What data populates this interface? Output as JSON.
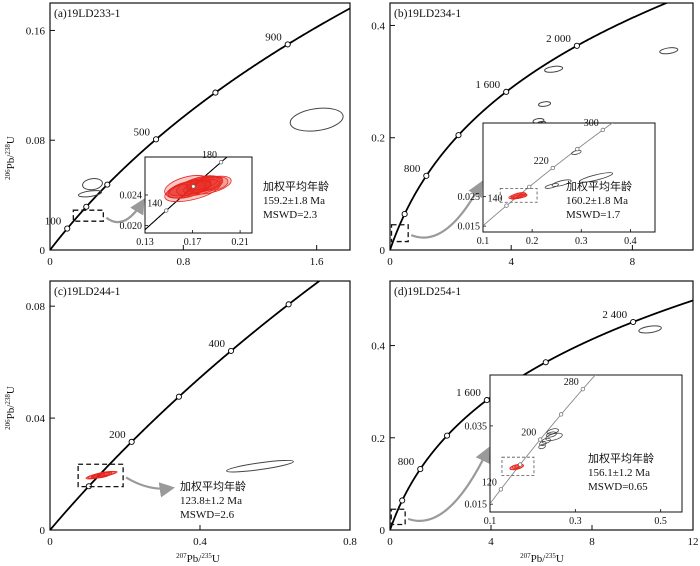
{
  "axes": {
    "ylabel_prefix": "206",
    "ylabel_suffix": "Pb/",
    "ylabel_denom": "238",
    "ylabel_unit": "U",
    "xlabel_prefix": "207",
    "xlabel_suffix": "Pb/",
    "xlabel_denom": "235",
    "xlabel_unit": "U"
  },
  "colors": {
    "frame": "#111111",
    "concordia": "#000000",
    "ellipse_data": "#e8261e",
    "ellipse_other": "#444444",
    "arrow": "#9a9a9a",
    "node_fill": "#ffffff"
  },
  "chart_data": [
    {
      "type": "scatter",
      "title": "(a)19LD233-1",
      "xlim": [
        0,
        1.8
      ],
      "ylim": [
        0,
        0.18
      ],
      "xticks": [
        0,
        0.8,
        1.6
      ],
      "xtick_labels": [
        "0",
        "0.8",
        "1.6"
      ],
      "yticks": [
        0,
        0.08,
        0.16
      ],
      "ytick_labels": [
        "0",
        "0.08",
        "0.16"
      ],
      "concordia_labels": [
        {
          "age": 100,
          "label": "100"
        },
        {
          "age": 500,
          "label": "500"
        },
        {
          "age": 900,
          "label": "900"
        }
      ],
      "concordia_nodes": [
        100,
        200,
        300,
        500,
        700,
        900
      ],
      "other_ellipses": [
        {
          "x": 0.255,
          "y": 0.048,
          "rx": 0.06,
          "ry": 0.004
        },
        {
          "x": 0.24,
          "y": 0.041,
          "rx": 0.07,
          "ry": 0.002
        },
        {
          "x": 1.6,
          "y": 0.095,
          "rx": 0.16,
          "ry": 0.008
        }
      ],
      "box": {
        "x0": 0.14,
        "x1": 0.32,
        "y0": 0.021,
        "y1": 0.029
      },
      "inset": {
        "xlim": [
          0.13,
          0.22
        ],
        "ylim": [
          0.019,
          0.029
        ],
        "xticks": [
          0.13,
          0.17,
          0.21
        ],
        "xtick_labels": [
          "0.13",
          "0.17",
          "0.21"
        ],
        "yticks": [
          0.02,
          0.024
        ],
        "ytick_labels": [
          "0.020",
          "0.024"
        ],
        "concordia_labels": [
          {
            "age": 140,
            "label": "140"
          },
          {
            "age": 180,
            "label": "180"
          }
        ],
        "concordia_nodes": [
          140,
          160,
          180
        ],
        "ellipses": [
          {
            "x": 0.172,
            "y": 0.0251,
            "rx": 0.022,
            "ry": 0.0009
          },
          {
            "x": 0.168,
            "y": 0.0249,
            "rx": 0.018,
            "ry": 0.0008
          },
          {
            "x": 0.176,
            "y": 0.0252,
            "rx": 0.02,
            "ry": 0.0011
          },
          {
            "x": 0.165,
            "y": 0.0247,
            "rx": 0.016,
            "ry": 0.001
          },
          {
            "x": 0.18,
            "y": 0.0254,
            "rx": 0.015,
            "ry": 0.0009
          },
          {
            "x": 0.17,
            "y": 0.0246,
            "rx": 0.024,
            "ry": 0.0012
          },
          {
            "x": 0.174,
            "y": 0.025,
            "rx": 0.012,
            "ry": 0.0007
          },
          {
            "x": 0.185,
            "y": 0.0253,
            "rx": 0.018,
            "ry": 0.001
          },
          {
            "x": 0.16,
            "y": 0.0245,
            "rx": 0.012,
            "ry": 0.0008
          },
          {
            "x": 0.178,
            "y": 0.0256,
            "rx": 0.014,
            "ry": 0.0008
          },
          {
            "x": 0.166,
            "y": 0.0251,
            "rx": 0.02,
            "ry": 0.0013
          },
          {
            "x": 0.19,
            "y": 0.0255,
            "rx": 0.01,
            "ry": 0.0008
          }
        ]
      },
      "result": {
        "label": "加权平均年龄",
        "age": "159.2±1.8 Ma",
        "mswd": "MSWD=2.3"
      }
    },
    {
      "type": "scatter",
      "title": "(b)19LD234-1",
      "xlim": [
        0,
        10
      ],
      "ylim": [
        0,
        0.44
      ],
      "xticks": [
        0,
        4,
        8
      ],
      "xtick_labels": [
        "0",
        "4",
        "8"
      ],
      "yticks": [
        0,
        0.2,
        0.4
      ],
      "ytick_labels": [
        "0",
        "0.2",
        "0.4"
      ],
      "concordia_labels": [
        {
          "age": 800,
          "label": "800"
        },
        {
          "age": 1600,
          "label": "1 600"
        },
        {
          "age": 2000,
          "label": "2 000"
        }
      ],
      "concordia_nodes": [
        400,
        800,
        1200,
        1600,
        2000
      ],
      "other_ellipses": [
        {
          "x": 9.2,
          "y": 0.355,
          "rx": 0.3,
          "ry": 0.005
        },
        {
          "x": 5.4,
          "y": 0.322,
          "rx": 0.3,
          "ry": 0.005
        },
        {
          "x": 5.1,
          "y": 0.26,
          "rx": 0.2,
          "ry": 0.004
        },
        {
          "x": 4.9,
          "y": 0.23,
          "rx": 0.18,
          "ry": 0.004
        },
        {
          "x": 5.0,
          "y": 0.226,
          "rx": 0.14,
          "ry": 0.003
        },
        {
          "x": 5.7,
          "y": 0.215,
          "rx": 0.2,
          "ry": 0.004
        }
      ],
      "box": {
        "x0": 0.05,
        "x1": 0.6,
        "y0": 0.015,
        "y1": 0.045
      },
      "inset": {
        "xlim": [
          0.1,
          0.45
        ],
        "ylim": [
          0.013,
          0.05
        ],
        "xticks": [
          0.1,
          0.2,
          0.3,
          0.4
        ],
        "xtick_labels": [
          "0.1",
          "0.2",
          "0.3",
          "0.4"
        ],
        "yticks": [
          0.015,
          0.025
        ],
        "ytick_labels": [
          "0.015",
          "0.025"
        ],
        "concordia_labels": [
          {
            "age": 140,
            "label": "140"
          },
          {
            "age": 220,
            "label": "220"
          },
          {
            "age": 300,
            "label": "300"
          }
        ],
        "concordia_nodes": [
          140,
          180,
          220,
          260,
          300
        ],
        "ellipses": [
          {
            "x": 0.17,
            "y": 0.0253,
            "rx": 0.018,
            "ry": 0.0007
          },
          {
            "x": 0.175,
            "y": 0.0251,
            "rx": 0.014,
            "ry": 0.0006
          },
          {
            "x": 0.168,
            "y": 0.0249,
            "rx": 0.012,
            "ry": 0.0006
          },
          {
            "x": 0.18,
            "y": 0.0252,
            "rx": 0.01,
            "ry": 0.0005
          },
          {
            "x": 0.172,
            "y": 0.0255,
            "rx": 0.015,
            "ry": 0.0007
          }
        ],
        "inset_others": [
          {
            "x": 0.33,
            "y": 0.0315,
            "rx": 0.035,
            "ry": 0.0009
          },
          {
            "x": 0.26,
            "y": 0.0296,
            "rx": 0.02,
            "ry": 0.0008
          },
          {
            "x": 0.24,
            "y": 0.0286,
            "rx": 0.014,
            "ry": 0.0006
          },
          {
            "x": 0.29,
            "y": 0.04,
            "rx": 0.01,
            "ry": 0.0006
          }
        ]
      },
      "result": {
        "label": "加权平均年龄",
        "age": "160.2±1.8 Ma",
        "mswd": "MSWD=1.7"
      }
    },
    {
      "type": "scatter",
      "title": "(c)19LD244-1",
      "xlim": [
        0,
        0.8
      ],
      "ylim": [
        0,
        0.089
      ],
      "xticks": [
        0,
        0.4,
        0.8
      ],
      "xtick_labels": [
        "0",
        "0.4",
        "0.8"
      ],
      "yticks": [
        0,
        0.04,
        0.08
      ],
      "ytick_labels": [
        "0",
        "0.04",
        "0.08"
      ],
      "concordia_labels": [
        {
          "age": 200,
          "label": "200"
        },
        {
          "age": 400,
          "label": "400"
        }
      ],
      "concordia_nodes": [
        100,
        200,
        300,
        400,
        500
      ],
      "other_ellipses": [
        {
          "x": 0.56,
          "y": 0.0228,
          "rx": 0.09,
          "ry": 0.0012
        }
      ],
      "box": {
        "x0": 0.075,
        "x1": 0.195,
        "y0": 0.0155,
        "y1": 0.0235
      },
      "data_ellipses": [
        {
          "x": 0.135,
          "y": 0.0196,
          "rx": 0.04,
          "ry": 0.0008
        },
        {
          "x": 0.13,
          "y": 0.0195,
          "rx": 0.03,
          "ry": 0.0007
        },
        {
          "x": 0.14,
          "y": 0.0197,
          "rx": 0.025,
          "ry": 0.0009
        },
        {
          "x": 0.128,
          "y": 0.0194,
          "rx": 0.018,
          "ry": 0.0006
        },
        {
          "x": 0.145,
          "y": 0.0198,
          "rx": 0.035,
          "ry": 0.0006
        }
      ],
      "result": {
        "label": "加权平均年龄",
        "age": "123.8±1.2 Ma",
        "mswd": "MSWD=2.6"
      }
    },
    {
      "type": "scatter",
      "title": "(d)19LD254-1",
      "xlim": [
        0,
        12
      ],
      "ylim": [
        0,
        0.54
      ],
      "xticks": [
        0,
        4,
        8,
        12
      ],
      "xtick_labels": [
        "0",
        "4",
        "8",
        "12"
      ],
      "yticks": [
        0,
        0.2,
        0.4
      ],
      "ytick_labels": [
        "0",
        "0.2",
        "0.4"
      ],
      "concordia_labels": [
        {
          "age": 800,
          "label": "800"
        },
        {
          "age": 1600,
          "label": "1 600"
        },
        {
          "age": 2400,
          "label": "2 400"
        }
      ],
      "concordia_nodes": [
        400,
        800,
        1200,
        1600,
        2000,
        2400
      ],
      "other_ellipses": [
        {
          "x": 10.3,
          "y": 0.435,
          "rx": 0.45,
          "ry": 0.007
        },
        {
          "x": 5.6,
          "y": 0.31,
          "rx": 0.2,
          "ry": 0.004
        },
        {
          "x": 4.7,
          "y": 0.236,
          "rx": 0.13,
          "ry": 0.004
        },
        {
          "x": 4.6,
          "y": 0.228,
          "rx": 0.1,
          "ry": 0.003
        }
      ],
      "box": {
        "x0": 0.05,
        "x1": 0.6,
        "y0": 0.012,
        "y1": 0.045
      },
      "inset": {
        "xlim": [
          0.1,
          0.55
        ],
        "ylim": [
          0.013,
          0.048
        ],
        "xticks": [
          0.1,
          0.3,
          0.5
        ],
        "xtick_labels": [
          "0.1",
          "0.3",
          "0.5"
        ],
        "yticks": [
          0.015,
          0.035
        ],
        "ytick_labels": [
          "0.015",
          "0.035"
        ],
        "concordia_labels": [
          {
            "age": 120,
            "label": "120"
          },
          {
            "age": 200,
            "label": "200"
          },
          {
            "age": 280,
            "label": "280"
          }
        ],
        "concordia_nodes": [
          120,
          160,
          200,
          240,
          280
        ],
        "ellipses": [
          {
            "x": 0.163,
            "y": 0.0245,
            "rx": 0.016,
            "ry": 0.0006
          },
          {
            "x": 0.158,
            "y": 0.0244,
            "rx": 0.012,
            "ry": 0.0005
          },
          {
            "x": 0.168,
            "y": 0.0247,
            "rx": 0.01,
            "ry": 0.0005
          },
          {
            "x": 0.16,
            "y": 0.0246,
            "rx": 0.008,
            "ry": 0.0004
          }
        ],
        "inset_others": [
          {
            "x": 0.247,
            "y": 0.0336,
            "rx": 0.014,
            "ry": 0.0006
          },
          {
            "x": 0.244,
            "y": 0.0328,
            "rx": 0.012,
            "ry": 0.0006
          },
          {
            "x": 0.25,
            "y": 0.0322,
            "rx": 0.02,
            "ry": 0.0008
          },
          {
            "x": 0.232,
            "y": 0.0312,
            "rx": 0.01,
            "ry": 0.0006
          },
          {
            "x": 0.224,
            "y": 0.0305,
            "rx": 0.008,
            "ry": 0.0005
          },
          {
            "x": 0.222,
            "y": 0.0297,
            "rx": 0.008,
            "ry": 0.0005
          }
        ]
      },
      "result": {
        "label": "加权平均年龄",
        "age": "156.1±1.2 Ma",
        "mswd": "MSWD=0.65"
      }
    }
  ]
}
